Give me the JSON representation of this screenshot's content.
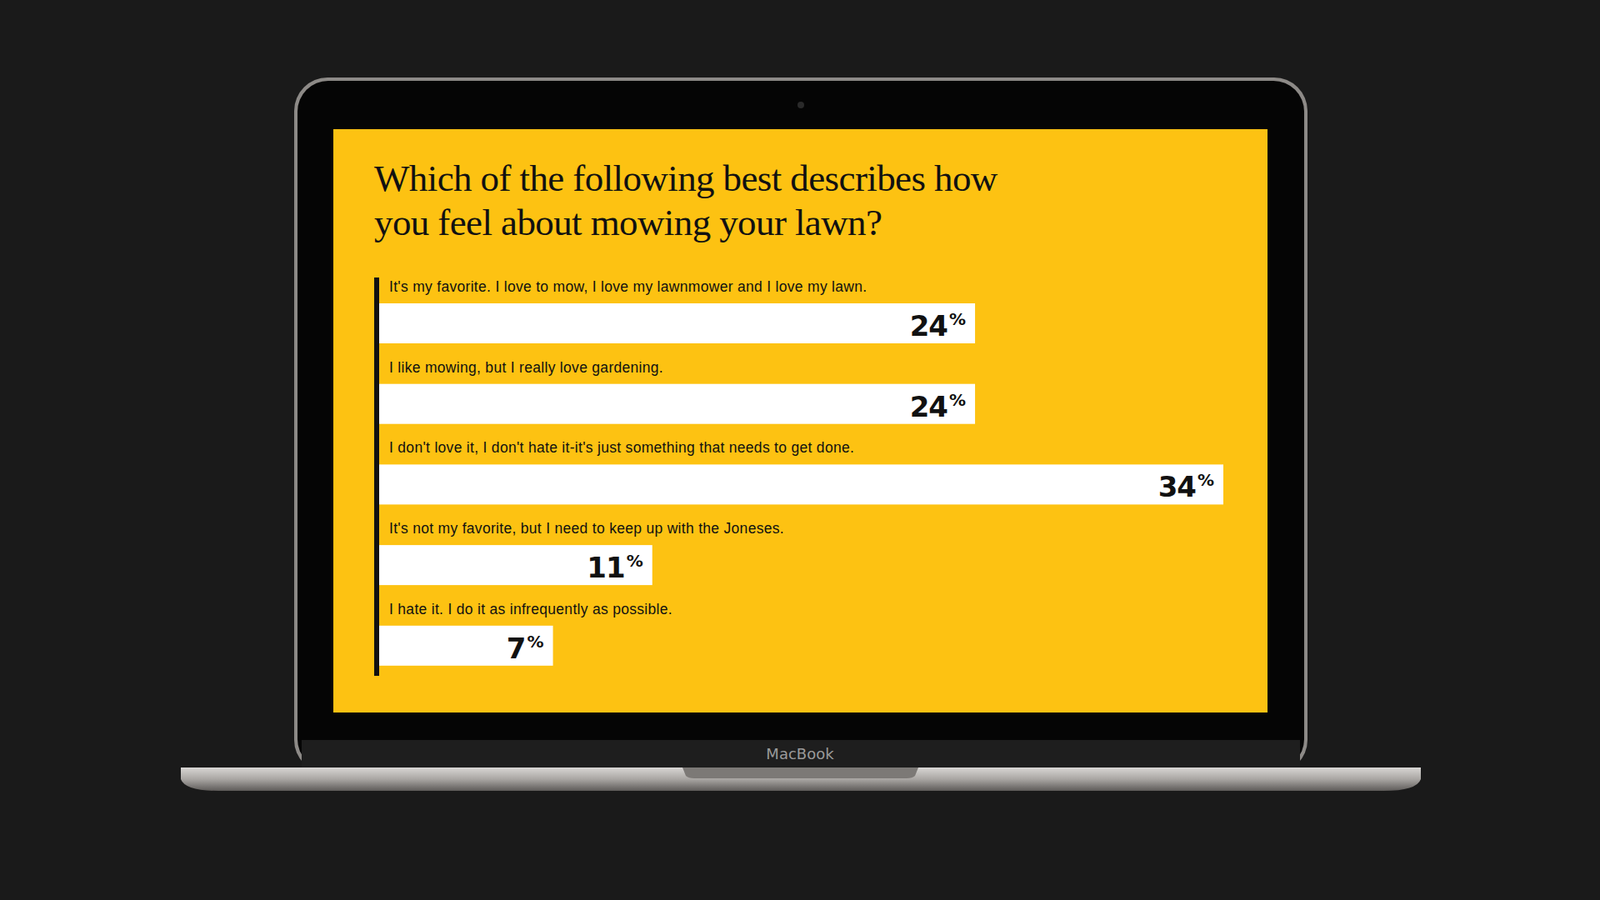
{
  "chart_data": {
    "type": "bar",
    "orientation": "horizontal",
    "title": "Which of the following best describes how you feel about mowing your lawn?",
    "categories": [
      "It's my favorite. I love to mow, I love my lawnmower and I love my lawn.",
      "I like mowing, but I really love gardening.",
      "I don't love it, I don't hate it-it's just something that needs to get done.",
      "It's not my favorite, but I need to keep up with the Joneses.",
      "I hate it. I do it as infrequently as possible."
    ],
    "values": [
      24,
      24,
      34,
      11,
      7
    ],
    "value_labels": [
      "24%",
      "24%",
      "34%",
      "11%",
      "7%"
    ],
    "xlim": [
      0,
      34
    ],
    "color": "#ffffff",
    "data_labels": true,
    "grid": false,
    "tick_labels": "y",
    "annotations": [
      "MacBook"
    ]
  }
}
